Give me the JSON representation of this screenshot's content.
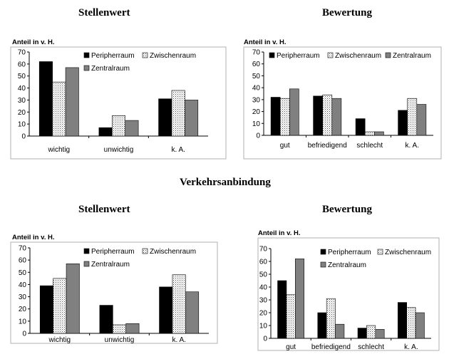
{
  "page": {
    "section_heading": "Verkehrsanbindung"
  },
  "colors": {
    "peripherraum": "#000000",
    "zwischenraum": "#ffffff",
    "zwischenraum_pattern": "dotted",
    "zentralraum": "#808080",
    "axis": "#000000",
    "panel_border": "#b0b0b0"
  },
  "chart_data": [
    {
      "type": "bar",
      "title": "Stellenwert",
      "ylabel": "Anteil in v. H.",
      "ylim": [
        0,
        70
      ],
      "yticks": [
        0,
        10,
        20,
        30,
        40,
        50,
        60,
        70
      ],
      "grid": false,
      "legend_position": "top-right",
      "categories": [
        "wichtig",
        "unwichtig",
        "k. A."
      ],
      "series": [
        {
          "name": "Peripherraum",
          "values": [
            62,
            7,
            31
          ]
        },
        {
          "name": "Zwischenraum",
          "values": [
            45,
            17,
            38
          ]
        },
        {
          "name": "Zentralraum",
          "values": [
            57,
            13,
            30
          ]
        }
      ]
    },
    {
      "type": "bar",
      "title": "Bewertung",
      "ylabel": "Anteil in v. H.",
      "ylim": [
        0,
        70
      ],
      "yticks": [
        0,
        10,
        20,
        30,
        40,
        50,
        60,
        70
      ],
      "grid": false,
      "legend_position": "top",
      "categories": [
        "gut",
        "befriedigend",
        "schlecht",
        "k. A."
      ],
      "series": [
        {
          "name": "Peripherraum",
          "values": [
            32,
            33,
            14,
            21
          ]
        },
        {
          "name": "Zwischenraum",
          "values": [
            31,
            34,
            3,
            31
          ]
        },
        {
          "name": "Zentralraum",
          "values": [
            39,
            31,
            3,
            26
          ]
        }
      ]
    },
    {
      "type": "bar",
      "title": "Stellenwert",
      "ylabel": "Anteil in v. H.",
      "ylim": [
        0,
        70
      ],
      "yticks": [
        0,
        10,
        20,
        30,
        40,
        50,
        60,
        70
      ],
      "grid": false,
      "legend_position": "top-right",
      "categories": [
        "wichtig",
        "unwichtig",
        "k. A."
      ],
      "series": [
        {
          "name": "Peripherraum",
          "values": [
            39,
            23,
            38
          ]
        },
        {
          "name": "Zwischenraum",
          "values": [
            45,
            7,
            48
          ]
        },
        {
          "name": "Zentralraum",
          "values": [
            57,
            8,
            34
          ]
        }
      ]
    },
    {
      "type": "bar",
      "title": "Bewertung",
      "ylabel": "Anteil in v. H.",
      "ylim": [
        0,
        70
      ],
      "yticks": [
        0,
        10,
        20,
        30,
        40,
        50,
        60,
        70
      ],
      "grid": false,
      "legend_position": "top-right",
      "categories": [
        "gut",
        "befriedigend",
        "schlecht",
        "k. A."
      ],
      "series": [
        {
          "name": "Peripherraum",
          "values": [
            45,
            20,
            8,
            28
          ]
        },
        {
          "name": "Zwischenraum",
          "values": [
            34,
            31,
            10,
            24
          ]
        },
        {
          "name": "Zentralraum",
          "values": [
            62,
            11,
            7,
            20
          ]
        }
      ]
    }
  ]
}
